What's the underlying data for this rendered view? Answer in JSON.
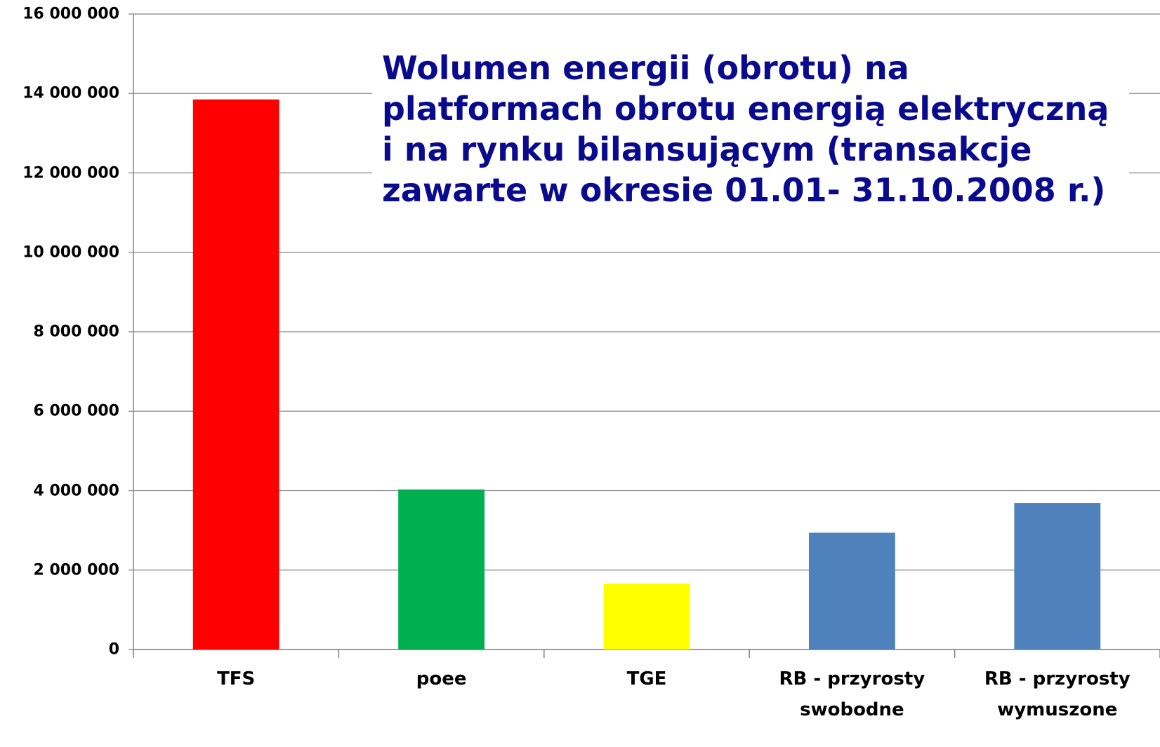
{
  "chart_data": {
    "type": "bar",
    "title": "Wolumen energii (obrotu) na platformach obrotu energią elektryczną  i na rynku bilansującym (transakcje zawarte w okresie 01.01- 31.10.2008 r.)",
    "categories": [
      "TFS",
      "poee",
      "TGE",
      "RB - przyrosty swobodne",
      "RB - przyrosty wymuszone"
    ],
    "values": [
      13850000,
      4030000,
      1660000,
      2940000,
      3690000
    ],
    "colors": [
      "#ff0000",
      "#00b050",
      "#ffff00",
      "#4f81bd",
      "#4f81bd"
    ],
    "ylim": [
      0,
      16000000
    ],
    "yticks": [
      0,
      {
        "value": 2000000,
        "label": "2 000 000"
      },
      {
        "value": 4000000,
        "label": "4 000 000"
      },
      {
        "value": 6000000,
        "label": "6 000 000"
      },
      {
        "value": 8000000,
        "label": "8 000 000"
      },
      {
        "value": 10000000,
        "label": "10 000 000"
      },
      {
        "value": 12000000,
        "label": "12 000 000"
      },
      {
        "value": 14000000,
        "label": "14 000 000"
      },
      {
        "value": 16000000,
        "label": "16 000 000"
      }
    ],
    "grid": true
  }
}
